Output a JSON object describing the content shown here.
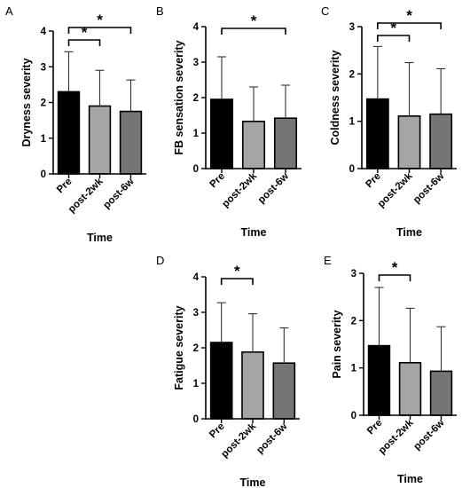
{
  "chart_data": [
    {
      "type": "bar",
      "panel": "A",
      "categories": [
        "Pre",
        "post-2wk",
        "post-6w"
      ],
      "values": [
        2.3,
        1.9,
        1.75
      ],
      "errors": [
        1.12,
        1.0,
        0.88
      ],
      "ylabel": "Dryness severity",
      "xlabel": "Time",
      "ylim": [
        0,
        4
      ],
      "yticks": [
        0,
        1,
        2,
        3,
        4
      ],
      "significance": [
        {
          "from": 0,
          "to": 1,
          "label": "*"
        },
        {
          "from": 0,
          "to": 2,
          "label": "*"
        }
      ]
    },
    {
      "type": "bar",
      "panel": "B",
      "categories": [
        "Pre",
        "post-2wk",
        "post-6w"
      ],
      "values": [
        1.95,
        1.33,
        1.42
      ],
      "errors": [
        1.2,
        0.97,
        0.93
      ],
      "ylabel": "FB sensation severity",
      "xlabel": "Time",
      "ylim": [
        0,
        4
      ],
      "yticks": [
        0,
        1,
        2,
        3,
        4
      ],
      "significance": [
        {
          "from": 0,
          "to": 2,
          "label": "*"
        }
      ]
    },
    {
      "type": "bar",
      "panel": "C",
      "categories": [
        "Pre",
        "post-2wk",
        "post-6w"
      ],
      "values": [
        1.47,
        1.11,
        1.15
      ],
      "errors": [
        1.11,
        1.13,
        0.96
      ],
      "ylabel": "Coldness severity",
      "xlabel": "Time",
      "ylim": [
        0,
        3
      ],
      "yticks": [
        0,
        1,
        2,
        3
      ],
      "significance": [
        {
          "from": 0,
          "to": 1,
          "label": "*"
        },
        {
          "from": 0,
          "to": 2,
          "label": "*"
        }
      ]
    },
    {
      "type": "bar",
      "panel": "D",
      "categories": [
        "Pre",
        "post-2wk",
        "post-6w"
      ],
      "values": [
        2.15,
        1.88,
        1.57
      ],
      "errors": [
        1.12,
        1.08,
        0.99
      ],
      "ylabel": "Fatigue severity",
      "xlabel": "Time",
      "ylim": [
        0,
        4
      ],
      "yticks": [
        0,
        1,
        2,
        3,
        4
      ],
      "significance": [
        {
          "from": 0,
          "to": 1,
          "label": "*"
        }
      ]
    },
    {
      "type": "bar",
      "panel": "E",
      "categories": [
        "Pre",
        "post-2wk",
        "post-6w"
      ],
      "values": [
        1.47,
        1.11,
        0.93
      ],
      "errors": [
        1.23,
        1.15,
        0.94
      ],
      "ylabel": "Pain severity",
      "xlabel": "Time",
      "ylim": [
        0,
        3
      ],
      "yticks": [
        0,
        1,
        2,
        3
      ],
      "significance": [
        {
          "from": 0,
          "to": 1,
          "label": "*"
        }
      ]
    }
  ],
  "style": {
    "bar_colors": [
      "#000000",
      "#a5a5a8",
      "#757575"
    ],
    "bar_stroke": "#000000",
    "axis_color": "#000000",
    "errorbar_color": "#333333"
  }
}
